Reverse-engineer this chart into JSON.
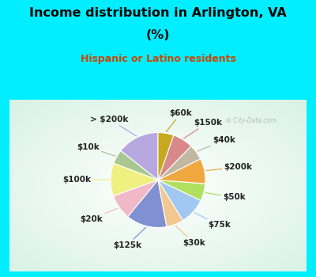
{
  "title_line1": "Income distribution in Arlington, VA",
  "title_line2": "(%)",
  "subtitle": "Hispanic or Latino residents",
  "title_color": "#000000",
  "subtitle_color": "#cc4400",
  "bg_cyan": "#00eeff",
  "bg_chart": "#d8ede0",
  "watermark": "City-Data.com",
  "labels": [
    "> $200k",
    "$10k",
    "$100k",
    "$20k",
    "$125k",
    "$30k",
    "$75k",
    "$50k",
    "$200k",
    "$40k",
    "$150k",
    "$60k"
  ],
  "values": [
    13.5,
    4.5,
    10.5,
    8.0,
    13.0,
    5.5,
    8.5,
    5.5,
    8.0,
    5.0,
    6.5,
    5.0
  ],
  "colors": [
    "#b8a8e0",
    "#a8c890",
    "#f0f080",
    "#f0b8c8",
    "#8090d0",
    "#f0c890",
    "#a0c8f0",
    "#b0e060",
    "#f0a840",
    "#c0b8a0",
    "#d88888",
    "#c8a820"
  ],
  "startangle": 90,
  "label_fontsize": 7.5,
  "figsize": [
    4.0,
    3.5
  ],
  "dpi": 100
}
